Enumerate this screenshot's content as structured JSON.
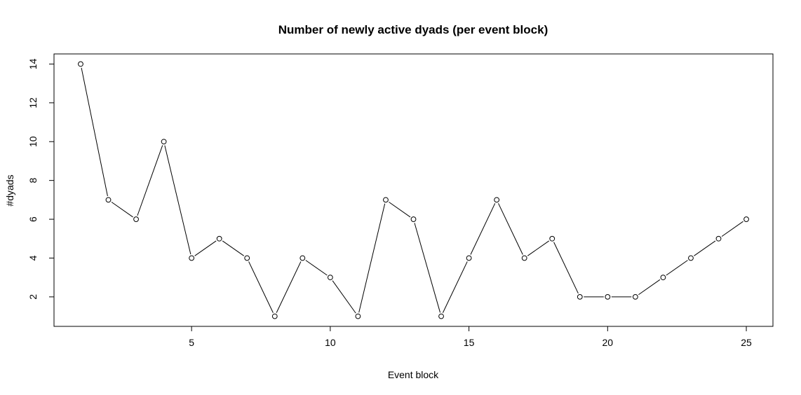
{
  "chart_data": {
    "type": "line",
    "title": "Number of newly active dyads (per event block)",
    "xlabel": "Event block",
    "ylabel": "#dyads",
    "x": [
      1,
      2,
      3,
      4,
      5,
      6,
      7,
      8,
      9,
      10,
      11,
      12,
      13,
      14,
      15,
      16,
      17,
      18,
      19,
      20,
      21,
      22,
      23,
      24,
      25
    ],
    "values": [
      14,
      7,
      6,
      10,
      4,
      5,
      4,
      1,
      4,
      3,
      1,
      7,
      6,
      1,
      4,
      7,
      4,
      5,
      2,
      2,
      2,
      3,
      4,
      5,
      6
    ],
    "xlim": [
      0.04,
      25.96
    ],
    "ylim": [
      0.48,
      14.52
    ],
    "xticks": [
      5,
      10,
      15,
      20,
      25
    ],
    "yticks": [
      2,
      4,
      6,
      8,
      10,
      12,
      14
    ],
    "grid": false,
    "line_color": "#000000",
    "marker": "open-circle"
  }
}
